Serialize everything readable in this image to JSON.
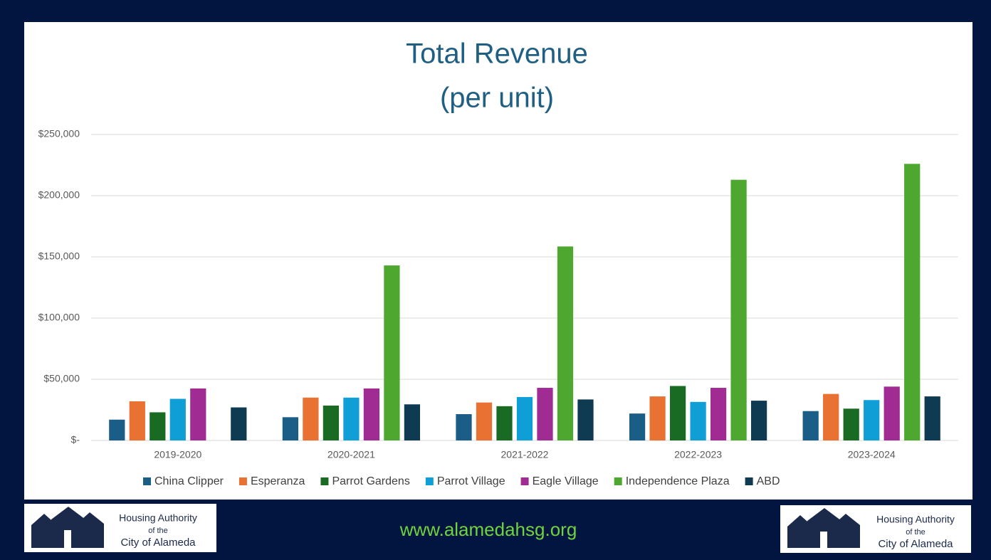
{
  "chart_data": {
    "type": "bar",
    "title": "Total Revenue",
    "subtitle": "(per unit)",
    "categories": [
      "2019-2020",
      "2020-2021",
      "2021-2022",
      "2022-2023",
      "2023-2024"
    ],
    "series": [
      {
        "name": "China Clipper",
        "color": "#1a5e87",
        "values": [
          17000,
          19000,
          21500,
          22000,
          24000
        ]
      },
      {
        "name": "Esperanza",
        "color": "#e97132",
        "values": [
          32000,
          35000,
          31000,
          36000,
          38000
        ]
      },
      {
        "name": "Parrot Gardens",
        "color": "#196b24",
        "values": [
          23000,
          28500,
          28000,
          44500,
          26000
        ]
      },
      {
        "name": "Parrot Village",
        "color": "#0f9ed5",
        "values": [
          34000,
          35000,
          35500,
          31500,
          33000
        ]
      },
      {
        "name": "Eagle Village",
        "color": "#a02b93",
        "values": [
          42500,
          42500,
          43000,
          43000,
          44000
        ]
      },
      {
        "name": "Independence Plaza",
        "color": "#4ea72e",
        "values": [
          null,
          143000,
          158500,
          213000,
          226000
        ]
      },
      {
        "name": "ABD",
        "color": "#0e3a52",
        "values": [
          27000,
          29500,
          33500,
          32500,
          36000
        ]
      }
    ],
    "ylim": [
      0,
      250000
    ],
    "yticks": [
      {
        "value": 0,
        "label": "$-"
      },
      {
        "value": 50000,
        "label": "$50,000"
      },
      {
        "value": 100000,
        "label": "$100,000"
      },
      {
        "value": 150000,
        "label": "$150,000"
      },
      {
        "value": 200000,
        "label": "$200,000"
      },
      {
        "value": 250000,
        "label": "$250,000"
      }
    ],
    "grid": true,
    "legend": "bottom"
  },
  "footer": {
    "url": "www.alamedahsg.org",
    "logo": {
      "line1": "Housing Authority",
      "line2": "of the",
      "line3": "City of Alameda"
    }
  }
}
